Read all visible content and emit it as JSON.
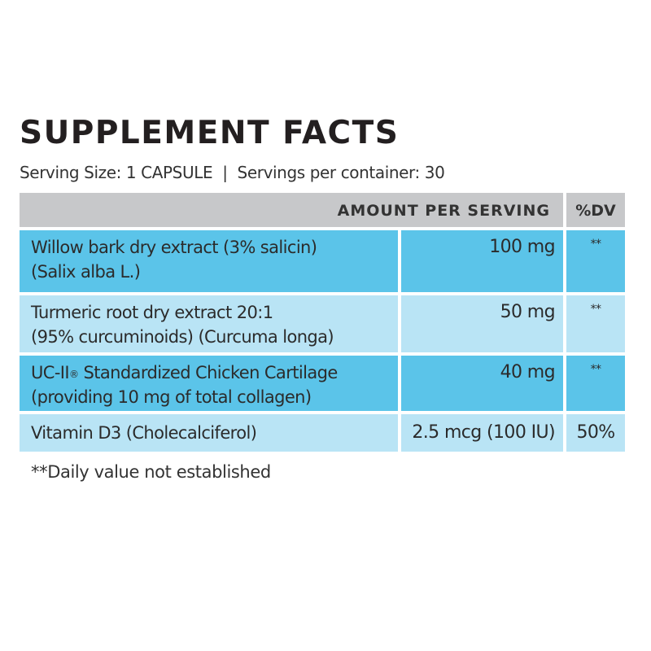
{
  "label": {
    "title": "SUPPLEMENT FACTS",
    "serving_size": "Serving Size: 1 CAPSULE",
    "separator": "|",
    "servings_per_container": "Servings per container: 30"
  },
  "table": {
    "headers": {
      "amount": "AMOUNT PER SERVING",
      "dv": "%DV"
    },
    "rows": [
      {
        "line1": "Willow bark dry extract (3% salicin)",
        "line2": "(Salix alba L.)",
        "amount": "100 mg",
        "dv": "**"
      },
      {
        "line1": "Turmeric root dry extract 20:1",
        "line2": "(95% curcuminoids) (Curcuma longa)",
        "amount": "50 mg",
        "dv": "**"
      },
      {
        "line1_pre": "UC-II",
        "line1_mark": "®",
        "line1_post": " Standardized Chicken Cartilage",
        "line2": "(providing 10 mg of total collagen)",
        "amount": "40 mg",
        "dv": "**"
      },
      {
        "line1": "Vitamin D3 (Cholecalciferol)",
        "amount": "2.5 mcg (100 IU)",
        "dv": "50%"
      }
    ]
  },
  "footnote": "**Daily value not established",
  "colors": {
    "header_bg": "#c7c8ca",
    "row_dark": "#5bc4e9",
    "row_light": "#b9e4f5"
  }
}
